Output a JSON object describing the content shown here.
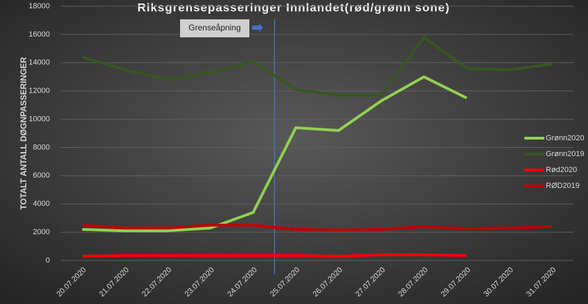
{
  "chart_data": {
    "type": "line",
    "title": "Riksgrensepasseringer Innlandet(rød/grønn sone)",
    "y_label": "TOTALT ANTALL DØGNPASSERINGER",
    "annotation": "Grenseåpning",
    "categories": [
      "20.07.2020",
      "21.07.2020",
      "22.07.2020",
      "23.07.2020",
      "24.07.2020",
      "25.07.2020",
      "26.07.2020",
      "27.07.2020",
      "28.07.2020",
      "29.07.2020",
      "30.07.2020",
      "31.07.2020"
    ],
    "series": [
      {
        "name": "Grønn2020",
        "color": "#92d050",
        "values": [
          2200,
          2100,
          2100,
          2300,
          3400,
          9400,
          9200,
          11300,
          13000,
          11500,
          null,
          null
        ]
      },
      {
        "name": "Grønn2019",
        "color": "#375623",
        "values": [
          14400,
          13500,
          12800,
          13300,
          14100,
          12100,
          11700,
          11700,
          15800,
          13600,
          13500,
          13900
        ]
      },
      {
        "name": "Rød2020",
        "color": "#ff0000",
        "values": [
          300,
          350,
          350,
          350,
          350,
          350,
          300,
          400,
          400,
          350,
          null,
          null
        ]
      },
      {
        "name": "RØD2019",
        "color": "#c00000",
        "values": [
          2500,
          2300,
          2300,
          2500,
          2500,
          2200,
          2150,
          2200,
          2400,
          2250,
          2300,
          2400
        ]
      }
    ],
    "ylim": [
      0,
      18000
    ],
    "yticks": [
      0,
      2000,
      4000,
      6000,
      8000,
      10000,
      12000,
      14000,
      16000,
      18000
    ],
    "grid": true,
    "legend": "right"
  }
}
